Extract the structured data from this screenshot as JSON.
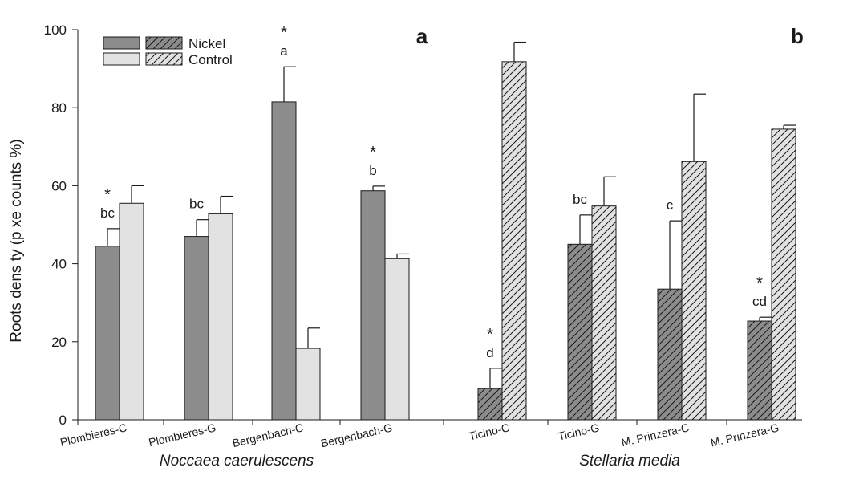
{
  "chart_data": {
    "type": "bar",
    "ylabel": "Roots dens ty (p xe counts %)",
    "ylim": [
      0,
      100
    ],
    "yticks": [
      0,
      20,
      40,
      60,
      80,
      100
    ],
    "grid": false,
    "legend_position": "top-left",
    "legend": {
      "entries": [
        "Nickel",
        "Control"
      ],
      "nickel_color": "#8c8c8c",
      "control_color": "#e2e2e2"
    },
    "colors": {
      "nickel": "#8c8c8c",
      "control": "#e2e2e2",
      "outline": "#1a1a1a"
    },
    "series": [
      {
        "name": "Nickel",
        "values": [
          44.5,
          47.0,
          81.5,
          58.7,
          8.0,
          45.0,
          33.5,
          25.3
        ],
        "errors": [
          4.5,
          4.3,
          9.0,
          1.2,
          5.2,
          7.5,
          17.5,
          1.0
        ]
      },
      {
        "name": "Control",
        "values": [
          55.5,
          52.8,
          18.3,
          41.3,
          91.8,
          54.8,
          66.2,
          74.5
        ],
        "errors": [
          4.5,
          4.5,
          5.2,
          1.2,
          5.0,
          7.5,
          17.3,
          1.0
        ]
      }
    ],
    "groups": [
      {
        "species": "Noccaea caerulescens",
        "panel": "a",
        "hatched": false,
        "categories": [
          {
            "label": "Plombieres-C",
            "annot": "bc",
            "star": "*"
          },
          {
            "label": "Plombieres-G",
            "annot": "bc",
            "star": ""
          },
          {
            "label": "Bergenbach-C",
            "annot": "a",
            "star": "*"
          },
          {
            "label": "Bergenbach-G",
            "annot": "b",
            "star": "*"
          }
        ]
      },
      {
        "species": "Stellaria media",
        "panel": "b",
        "hatched": true,
        "categories": [
          {
            "label": "Ticino-C",
            "annot": "d",
            "star": "*"
          },
          {
            "label": "Ticino-G",
            "annot": "bc",
            "star": ""
          },
          {
            "label": "M. Prinzera-C",
            "annot": "c",
            "star": ""
          },
          {
            "label": "M. Prinzera-G",
            "annot": "cd",
            "star": "*"
          }
        ]
      }
    ]
  }
}
